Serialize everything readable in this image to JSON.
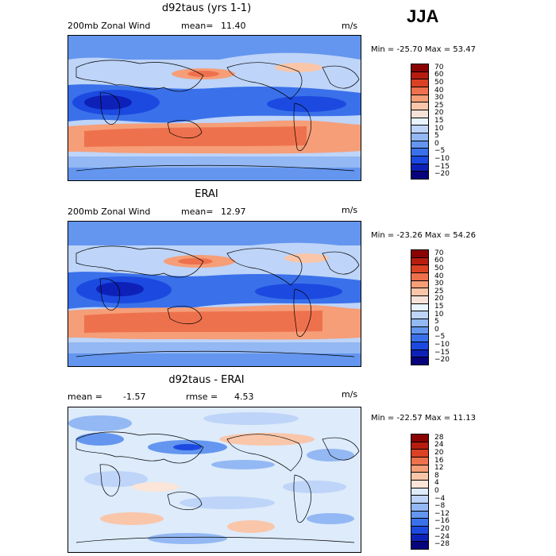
{
  "season": "JJA",
  "palette": {
    "main": [
      "#e8f4ff",
      "#08037c",
      "#0d21b8",
      "#1c4ae0",
      "#3a71ea",
      "#6496ef",
      "#93b8f3",
      "#bed4f8",
      "#f6e2d8",
      "#f9c6aa",
      "#f59e78",
      "#ee714d",
      "#db4224",
      "#b71d0e",
      "#8a0303"
    ],
    "diff": [
      "#08037c",
      "#0d21b8",
      "#1c4ae0",
      "#3a71ea",
      "#6496ef",
      "#93b8f3",
      "#bed4f8",
      "#ddebfb",
      "#fbe5d8",
      "#f9c6aa",
      "#f59e78",
      "#ee714d",
      "#db4224",
      "#b71d0e",
      "#8a0303"
    ]
  },
  "panels": [
    {
      "id": "model",
      "title": "d92taus (yrs 1-1)",
      "left_label": "200mb Zonal Wind",
      "stat_label": "mean=",
      "stat_value": "11.40",
      "units": "m/s",
      "minmax": "Min = -25.70 Max =  53.47",
      "colorbar_labels": [
        "70",
        "60",
        "50",
        "40",
        "30",
        "25",
        "20",
        "15",
        "10",
        "5",
        "0",
        "−5",
        "−10",
        "−15",
        "−20"
      ]
    },
    {
      "id": "obs",
      "title": "ERAI",
      "left_label": "200mb Zonal Wind",
      "stat_label": "mean=",
      "stat_value": "12.97",
      "units": "m/s",
      "minmax": "Min = -23.26 Max =  54.26",
      "colorbar_labels": [
        "70",
        "60",
        "50",
        "40",
        "30",
        "25",
        "20",
        "15",
        "10",
        "5",
        "0",
        "−5",
        "−10",
        "−15",
        "−20"
      ]
    },
    {
      "id": "diff",
      "title": "d92taus - ERAI",
      "left_label": "mean =",
      "left_value": "-1.57",
      "stat_label": "rmse =",
      "stat_value": "4.53",
      "units": "m/s",
      "minmax": "Min = -22.57 Max =  11.13",
      "colorbar_labels": [
        "28",
        "24",
        "20",
        "16",
        "12",
        "8",
        "4",
        "0",
        "−4",
        "−8",
        "−12",
        "−16",
        "−20",
        "−24",
        "−28"
      ]
    }
  ]
}
